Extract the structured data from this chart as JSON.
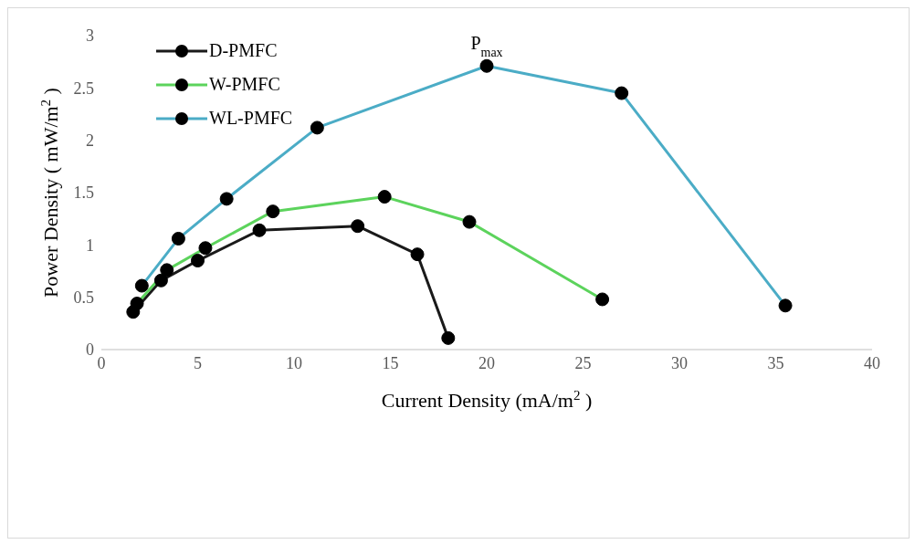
{
  "chart_data": {
    "type": "line",
    "xlabel": "Current Density (mA/m$^{2}$)",
    "ylabel": "Power Density ( mW/m$^{2}$ )",
    "xlim": [
      0,
      40
    ],
    "xticks": [
      0,
      5,
      10,
      15,
      20,
      25,
      30,
      35,
      40
    ],
    "ylim": [
      0,
      3
    ],
    "yticks": [
      0,
      0.5,
      1,
      1.5,
      2,
      2.5,
      3
    ],
    "grid": false,
    "legend": "top left",
    "marker": "circle",
    "line_style": "solid",
    "annotations": [
      {
        "text": "P$_{max}$",
        "x": 20,
        "y": 2.71
      }
    ],
    "series": [
      {
        "name": "D-PMFC",
        "color": "#1a1a1a",
        "x": [
          1.65,
          3.1,
          5.0,
          8.2,
          13.3,
          16.4,
          18.0
        ],
        "values": [
          0.36,
          0.66,
          0.85,
          1.14,
          1.18,
          0.91,
          0.11
        ]
      },
      {
        "name": "W-PMFC",
        "color": "#5cd35c",
        "x": [
          1.85,
          3.4,
          5.4,
          8.9,
          14.7,
          19.1,
          26.0
        ],
        "values": [
          0.44,
          0.76,
          0.97,
          1.32,
          1.46,
          1.22,
          0.48
        ]
      },
      {
        "name": "WL-PMFC",
        "color": "#4bacc6",
        "x": [
          2.1,
          4.0,
          6.5,
          11.2,
          20.0,
          27.0,
          35.5
        ],
        "values": [
          0.61,
          1.06,
          1.44,
          2.12,
          2.71,
          2.45,
          0.42
        ]
      }
    ]
  }
}
